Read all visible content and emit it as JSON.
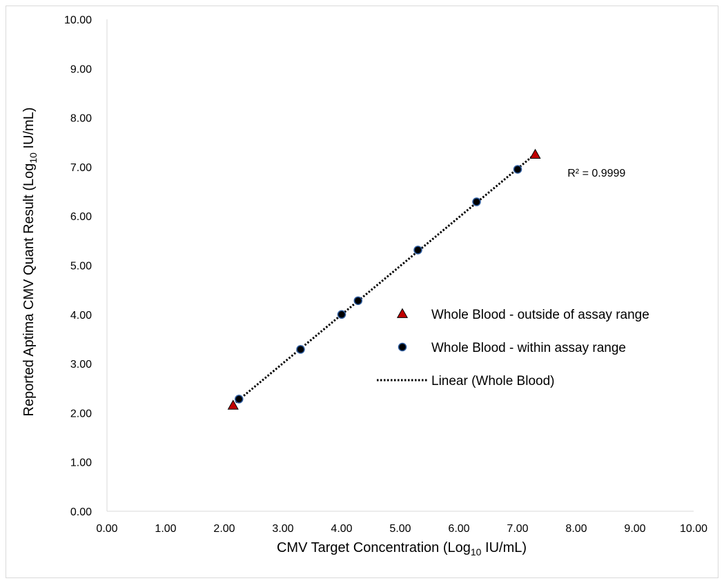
{
  "chart_data": {
    "type": "scatter",
    "x_axis": {
      "label_prefix": "CMV Target Concentration (Log",
      "label_sub": "10",
      "label_suffix": " IU/mL)",
      "range": [
        0,
        10
      ],
      "ticks": [
        "0.00",
        "1.00",
        "2.00",
        "3.00",
        "4.00",
        "5.00",
        "6.00",
        "7.00",
        "8.00",
        "9.00",
        "10.00"
      ]
    },
    "y_axis": {
      "label_prefix": "Reported Aptima CMV Quant Result (Log",
      "label_sub": "10",
      "label_suffix": " IU/mL)",
      "range": [
        0,
        10
      ],
      "ticks": [
        "0.00",
        "1.00",
        "2.00",
        "3.00",
        "4.00",
        "5.00",
        "6.00",
        "7.00",
        "8.00",
        "9.00",
        "10.00"
      ]
    },
    "series": [
      {
        "name": "Whole Blood - outside of assay range",
        "marker": "triangle",
        "color": "#c00000",
        "points": [
          [
            2.15,
            2.15
          ],
          [
            7.3,
            7.25
          ]
        ]
      },
      {
        "name": "Whole Blood - within assay range",
        "marker": "circle",
        "color": "#000000",
        "edge_color": "#2e5c9e",
        "points": [
          [
            2.25,
            2.28
          ],
          [
            3.3,
            3.29
          ],
          [
            4.0,
            4.0
          ],
          [
            4.28,
            4.28
          ],
          [
            5.3,
            5.31
          ],
          [
            6.3,
            6.29
          ],
          [
            7.0,
            6.95
          ]
        ]
      }
    ],
    "trendline": {
      "name": "Linear (Whole Blood)",
      "style": "dotted",
      "color": "#000000",
      "x_range": [
        2.15,
        7.3
      ],
      "r_squared_label": "R² = 0.9999",
      "r_squared_anchor": [
        7.85,
        6.8
      ]
    },
    "grid": false,
    "legend_position": "right"
  }
}
